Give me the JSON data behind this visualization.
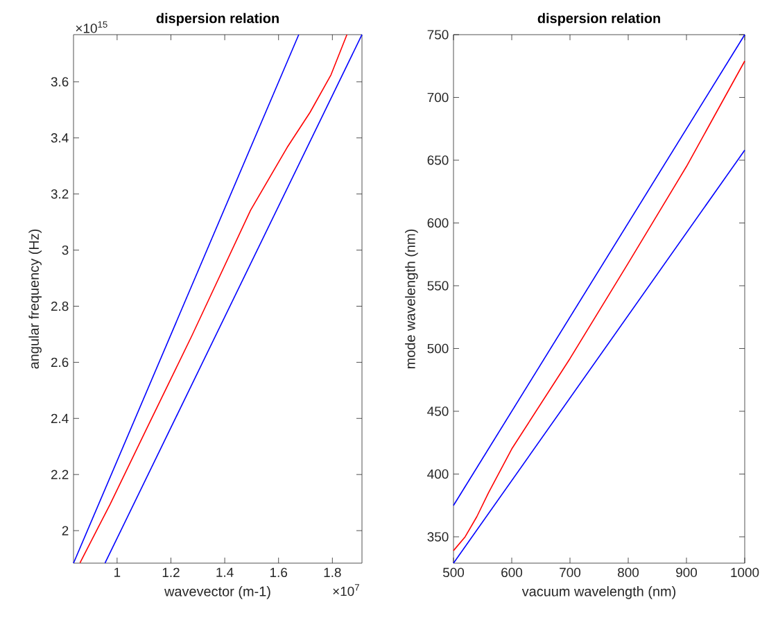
{
  "chart_data": [
    {
      "type": "line",
      "title": "dispersion relation",
      "xlabel": "wavevector (m-1)",
      "ylabel": "angular frequency (Hz)",
      "annotations": [
        "×10$^{15}$",
        "×10$^{7}$"
      ],
      "xlim": [
        0.838,
        1.91
      ],
      "ylim": [
        1.884,
        3.768
      ],
      "xticks": [
        1,
        1.2,
        1.4,
        1.6,
        1.8
      ],
      "yticks": [
        2,
        2.2,
        2.4,
        2.6,
        2.8,
        3,
        3.2,
        3.4,
        3.6
      ],
      "series": [
        {
          "color": "#0000ff",
          "x": [
            0.838,
            1.675
          ],
          "values": [
            1.884,
            3.768
          ]
        },
        {
          "color": "#ff0000",
          "x": [
            0.862,
            0.974,
            1.106,
            1.277,
            1.496,
            1.632,
            1.717,
            1.795,
            1.854
          ],
          "values": [
            1.885,
            2.094,
            2.356,
            2.693,
            3.142,
            3.366,
            3.491,
            3.625,
            3.768
          ]
        },
        {
          "color": "#0000ff",
          "x": [
            0.955,
            1.91
          ],
          "values": [
            1.884,
            3.768
          ]
        }
      ]
    },
    {
      "type": "line",
      "title": "dispersion relation",
      "xlabel": "vacuum wavelength (nm)",
      "ylabel": "mode wavelength (nm)",
      "xlim": [
        500,
        1000
      ],
      "ylim": [
        329,
        750
      ],
      "xticks": [
        500,
        600,
        700,
        800,
        900,
        1000
      ],
      "yticks": [
        350,
        400,
        450,
        500,
        550,
        600,
        650,
        700,
        750
      ],
      "series": [
        {
          "color": "#0000ff",
          "x": [
            500,
            1000
          ],
          "values": [
            375,
            750
          ]
        },
        {
          "color": "#ff0000",
          "x": [
            500,
            520,
            540,
            560,
            600,
            700,
            800,
            900,
            1000
          ],
          "values": [
            339,
            350,
            366,
            385,
            420,
            492,
            568,
            645,
            729
          ]
        },
        {
          "color": "#0000ff",
          "x": [
            500,
            1000
          ],
          "values": [
            329,
            658
          ]
        }
      ]
    }
  ]
}
